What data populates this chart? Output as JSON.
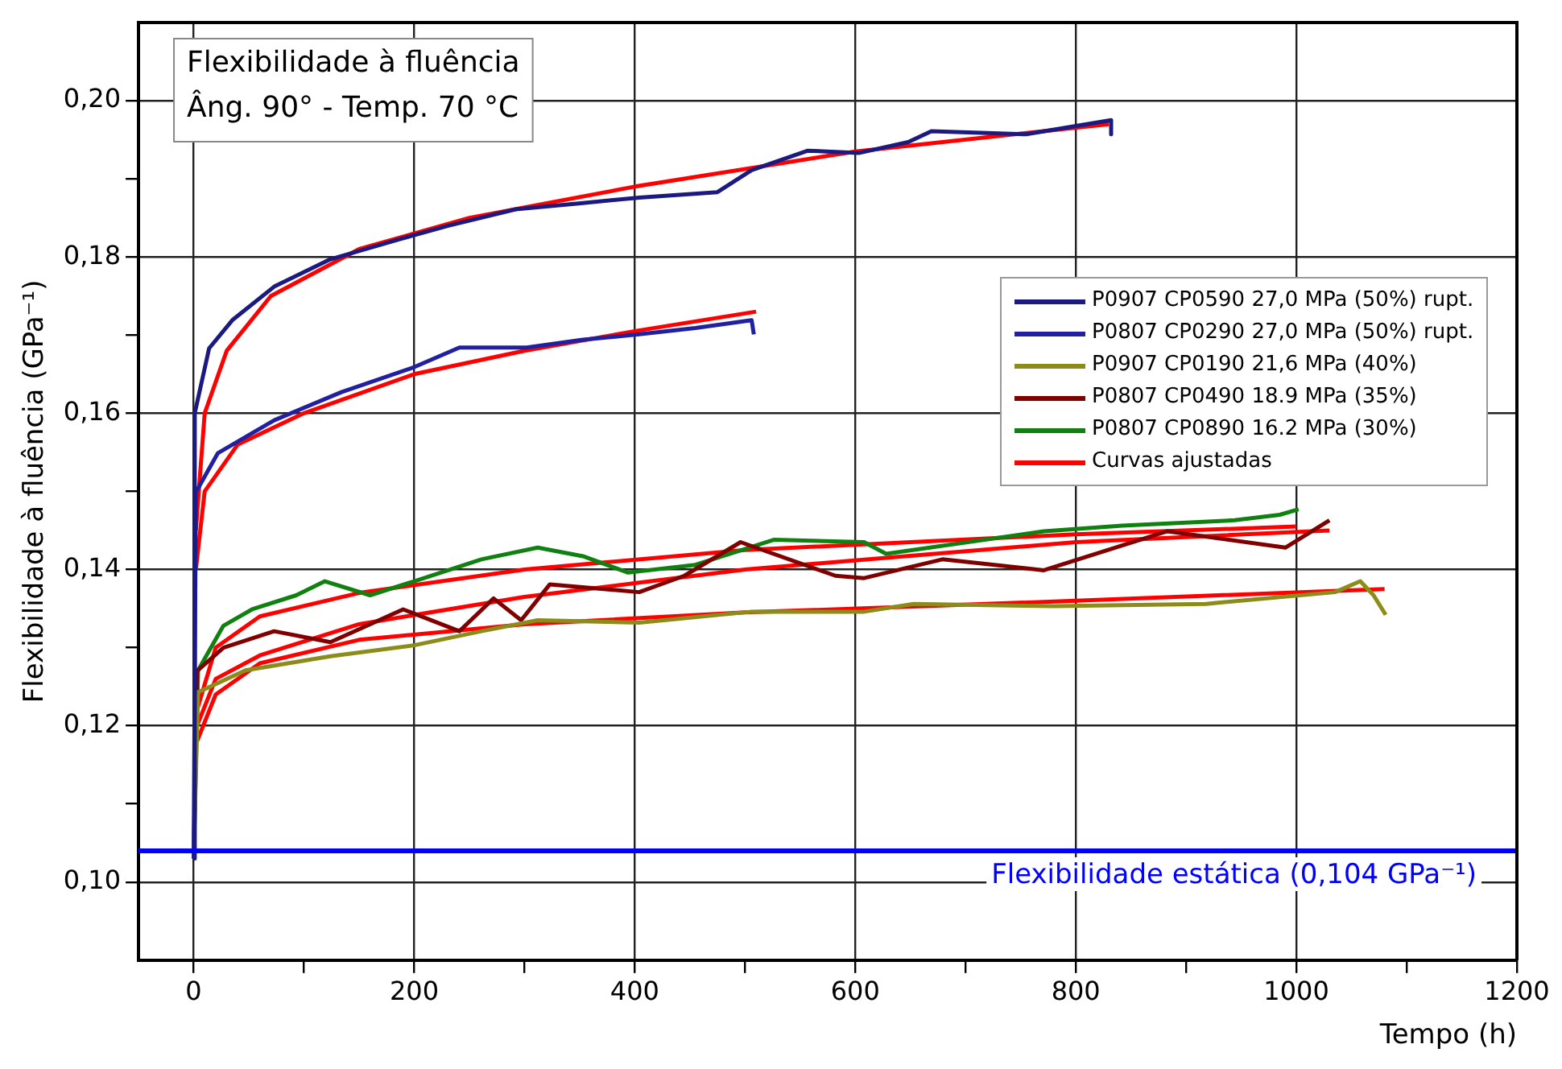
{
  "chart_data": {
    "type": "line",
    "title": "Flexibilidade à fluência",
    "subtitle": "Âng. 90° - Temp. 70 °C",
    "xlabel": "Tempo (h)",
    "ylabel": "Flexibilidade à fluência (GPa⁻¹)",
    "xlim": [
      -50,
      1200
    ],
    "xticks": [
      0,
      {
        "value": 100,
        "label": null
      },
      200,
      {
        "value": 300,
        "label": null
      },
      400,
      {
        "value": 500,
        "label": null
      },
      600,
      {
        "value": 700,
        "label": null
      },
      800,
      {
        "value": 900,
        "label": null
      },
      1000,
      {
        "value": 1100,
        "label": null
      },
      1200
    ],
    "ylim": [
      0.09,
      0.21
    ],
    "yticks": [
      {
        "value": 0.1,
        "label": "0,10"
      },
      {
        "value": 0.11,
        "label": null
      },
      {
        "value": 0.12,
        "label": "0,12"
      },
      {
        "value": 0.13,
        "label": null
      },
      {
        "value": 0.14,
        "label": "0,14"
      },
      {
        "value": 0.15,
        "label": null
      },
      {
        "value": 0.16,
        "label": "0,16"
      },
      {
        "value": 0.17,
        "label": null
      },
      {
        "value": 0.18,
        "label": "0,18"
      },
      {
        "value": 0.19,
        "label": null
      },
      {
        "value": 0.2,
        "label": "0,20"
      }
    ],
    "grid": true,
    "legend": "right",
    "ref_lines": [
      {
        "axis": "y",
        "value": 0.104,
        "label": "Flexibilidade estática (0,104 GPa⁻¹)",
        "color": "#0000ff"
      }
    ],
    "series": [
      {
        "name": "P0907 CP0590 27,0 MPa (50%) rupt.",
        "color": "#1a1a80",
        "x": [
          0,
          1,
          14,
          35,
          73,
          124,
          185,
          231,
          292,
          353,
          404,
          475,
          506,
          557,
          603,
          648,
          669,
          755,
          832,
          832
        ],
        "values": [
          0.103,
          0.16,
          0.1683,
          0.1719,
          0.1762,
          0.1797,
          0.1822,
          0.184,
          0.1861,
          0.1869,
          0.1876,
          0.1883,
          0.1911,
          0.1936,
          0.1933,
          0.1947,
          0.1961,
          0.1957,
          0.1975,
          0.1957
        ]
      },
      {
        "name": "P0807 CP0290 27,0 MPa (50%) rupt.",
        "color": "#2020a0",
        "x": [
          0,
          2,
          22,
          73,
          134,
          200,
          241,
          302,
          353,
          404,
          455,
          506,
          508
        ],
        "values": [
          0.103,
          0.1499,
          0.1549,
          0.1591,
          0.1627,
          0.1659,
          0.1684,
          0.1684,
          0.1694,
          0.1701,
          0.1709,
          0.1719,
          0.1701
        ]
      },
      {
        "name": "P0907 CP0190 21,6 MPa (40%)",
        "color": "#8c8c1a",
        "x": [
          0,
          4,
          47,
          124,
          200,
          261,
          312,
          404,
          506,
          608,
          653,
          781,
          918,
          1035,
          1058,
          1070,
          1081
        ],
        "values": [
          0.103,
          0.1243,
          0.1271,
          0.1289,
          0.1303,
          0.1321,
          0.1335,
          0.1332,
          0.1346,
          0.1346,
          0.1356,
          0.1353,
          0.1356,
          0.1371,
          0.1385,
          0.1367,
          0.1342
        ]
      },
      {
        "name": "P0807 CP0490 18.9 MPa (35%)",
        "color": "#800000",
        "x": [
          0,
          3,
          27,
          73,
          124,
          190,
          241,
          272,
          297,
          323,
          404,
          445,
          496,
          582,
          608,
          679,
          771,
          883,
          990,
          1030
        ],
        "values": [
          0.103,
          0.127,
          0.13,
          0.1321,
          0.1307,
          0.1349,
          0.1321,
          0.1363,
          0.1335,
          0.1381,
          0.1371,
          0.1392,
          0.1435,
          0.1392,
          0.1389,
          0.1413,
          0.1399,
          0.1449,
          0.1428,
          0.1463
        ]
      },
      {
        "name": "P0807 CP0890 16.2 MPa (30%)",
        "color": "#108010",
        "x": [
          0,
          4,
          27,
          53,
          93,
          119,
          160,
          200,
          261,
          312,
          353,
          394,
          455,
          526,
          608,
          628,
          771,
          842,
          944,
          985,
          1002
        ],
        "values": [
          0.103,
          0.1271,
          0.1328,
          0.1349,
          0.1367,
          0.1385,
          0.1367,
          0.1385,
          0.1413,
          0.1428,
          0.1417,
          0.1396,
          0.1406,
          0.1438,
          0.1435,
          0.142,
          0.1449,
          0.1456,
          0.1463,
          0.147,
          0.1477
        ]
      },
      {
        "name": "Curvas ajustadas",
        "color": "#ff0000",
        "x": [
          2,
          10,
          30,
          70,
          150,
          250,
          400,
          600,
          830
        ],
        "values": [
          0.145,
          0.16,
          0.168,
          0.175,
          0.181,
          0.185,
          0.189,
          0.1935,
          0.197
        ]
      },
      {
        "color": "#ff0000",
        "x": [
          2,
          10,
          40,
          100,
          200,
          300,
          400,
          510
        ],
        "values": [
          0.14,
          0.15,
          0.156,
          0.16,
          0.165,
          0.168,
          0.1705,
          0.173
        ]
      },
      {
        "color": "#ff0000",
        "x": [
          3,
          20,
          60,
          150,
          300,
          500,
          800,
          1080
        ],
        "values": [
          0.118,
          0.124,
          0.128,
          0.131,
          0.133,
          0.1345,
          0.136,
          0.1375
        ]
      },
      {
        "color": "#ff0000",
        "x": [
          3,
          20,
          60,
          150,
          300,
          500,
          800,
          1030
        ],
        "values": [
          0.12,
          0.126,
          0.129,
          0.133,
          0.1365,
          0.14,
          0.1435,
          0.145
        ]
      },
      {
        "color": "#ff0000",
        "x": [
          3,
          20,
          60,
          150,
          300,
          500,
          800,
          1000
        ],
        "values": [
          0.122,
          0.13,
          0.134,
          0.137,
          0.14,
          0.1425,
          0.1445,
          0.1455
        ]
      }
    ]
  }
}
